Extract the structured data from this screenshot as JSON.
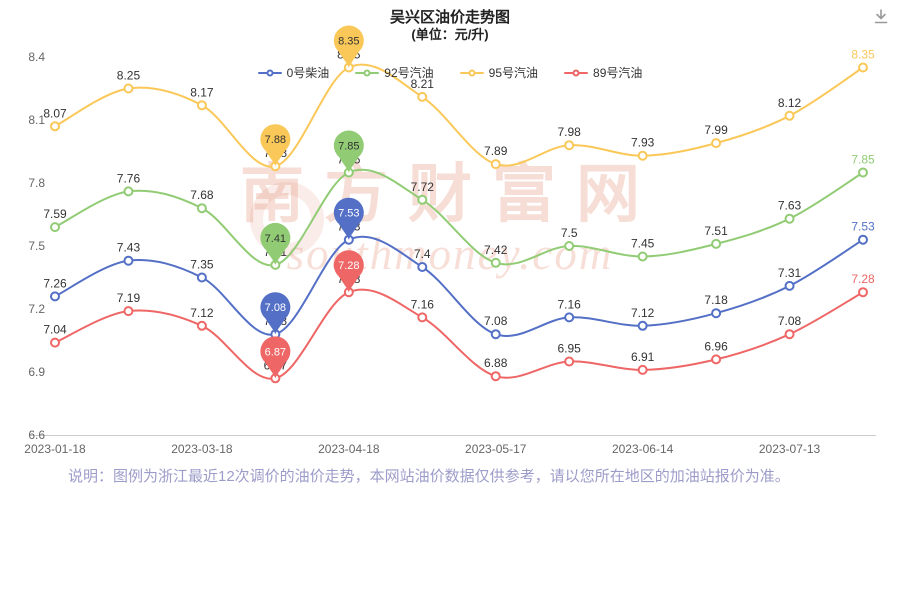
{
  "chart_data": {
    "type": "line",
    "title": "吴兴区油价走势图",
    "subtitle": "(单位：元/升)",
    "ylim": [
      6.6,
      8.4
    ],
    "y_ticks": [
      6.6,
      6.9,
      7.2,
      7.5,
      7.8,
      8.1,
      8.4
    ],
    "x_tick_labels": [
      "2023-01-18",
      "2023-03-18",
      "2023-04-18",
      "2023-05-17",
      "2023-06-14",
      "2023-07-13"
    ],
    "x_tick_point_indices": [
      0,
      2,
      4,
      6,
      8,
      10
    ],
    "num_points": 12,
    "grid": false,
    "legend_position": "top",
    "marked_point_indices": [
      3,
      4
    ],
    "series": [
      {
        "name": "0号柴油",
        "color": "#5470c6",
        "pin_text_color": "#ffffff",
        "values": [
          7.26,
          7.43,
          7.35,
          7.08,
          7.53,
          7.4,
          7.08,
          7.16,
          7.12,
          7.18,
          7.31,
          7.53
        ]
      },
      {
        "name": "92号汽油",
        "color": "#91cc75",
        "pin_text_color": "#333333",
        "values": [
          7.59,
          7.76,
          7.68,
          7.41,
          7.85,
          7.72,
          7.42,
          7.5,
          7.45,
          7.51,
          7.63,
          7.85
        ]
      },
      {
        "name": "95号汽油",
        "color": "#fac858",
        "pin_text_color": "#333333",
        "values": [
          8.07,
          8.25,
          8.17,
          7.88,
          8.35,
          8.21,
          7.89,
          7.98,
          7.93,
          7.99,
          8.12,
          8.35
        ]
      },
      {
        "name": "89号汽油",
        "color": "#ee6666",
        "pin_text_color": "#ffffff",
        "values": [
          7.04,
          7.19,
          7.12,
          6.87,
          7.28,
          7.16,
          6.88,
          6.95,
          6.91,
          6.96,
          7.08,
          7.28
        ]
      }
    ]
  },
  "watermark": {
    "line1": "南方财富网",
    "line2": "southmoney.com"
  },
  "icons": {
    "download": "download-arrow"
  },
  "footer": {
    "note": "说明：图例为浙江最近12次调价的油价走势，本网站油价数据仅供参考，请以您所在地区的加油站报价为准。"
  }
}
